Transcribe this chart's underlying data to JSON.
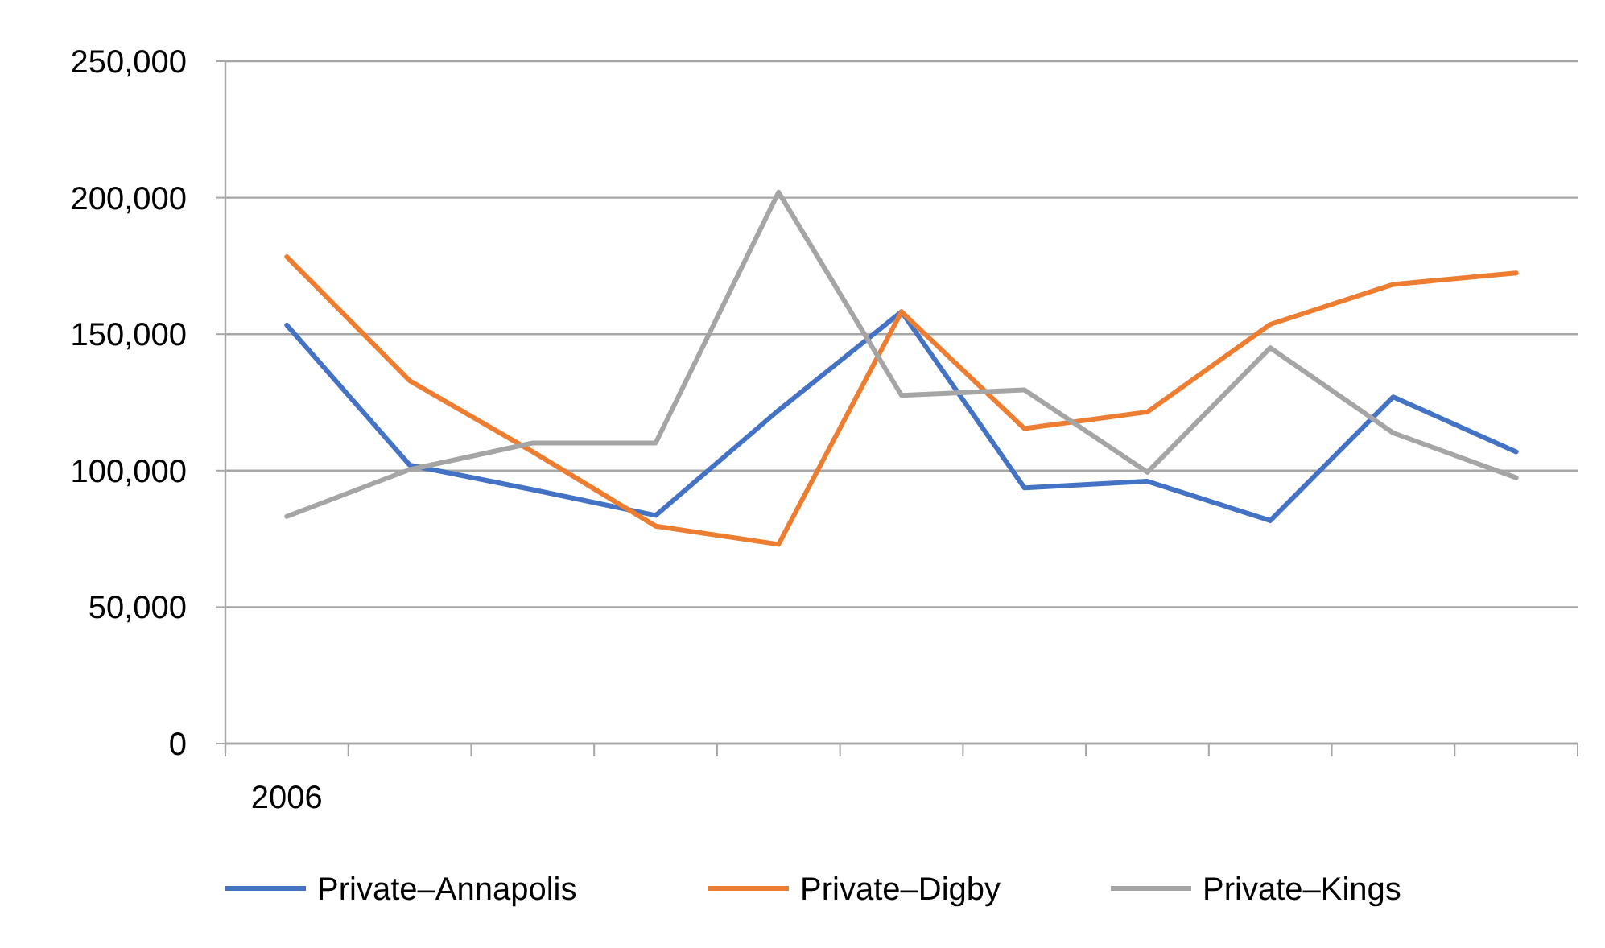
{
  "chart_data": {
    "type": "line",
    "categories": [
      "2006",
      null,
      null,
      null,
      null,
      null,
      null,
      null,
      null,
      null,
      null
    ],
    "series": [
      {
        "name": "Private–Annapolis",
        "color": "#4472c4",
        "values": [
          153300,
          102000,
          93000,
          83600,
          122100,
          158200,
          93700,
          96100,
          81700,
          127000,
          106900
        ]
      },
      {
        "name": "Private–Digby",
        "color": "#ed7d31",
        "values": [
          178300,
          132900,
          106900,
          79700,
          73000,
          158200,
          115400,
          121500,
          153600,
          168200,
          172400
        ]
      },
      {
        "name": "Private–Kings",
        "color": "#a5a5a5",
        "values": [
          83200,
          100400,
          110100,
          110100,
          202000,
          127600,
          129600,
          99400,
          145000,
          113800,
          97400
        ]
      }
    ],
    "ylim": [
      0,
      250000
    ],
    "yticks": [
      {
        "value": 0,
        "label": "0"
      },
      {
        "value": 50000,
        "label": "50,000"
      },
      {
        "value": 100000,
        "label": "100,000"
      },
      {
        "value": 150000,
        "label": "150,000"
      },
      {
        "value": 200000,
        "label": "200,000"
      },
      {
        "value": 250000,
        "label": "250,000"
      }
    ],
    "grid": "y",
    "legend": "bottom",
    "marker": "none",
    "line_style": "solid"
  }
}
